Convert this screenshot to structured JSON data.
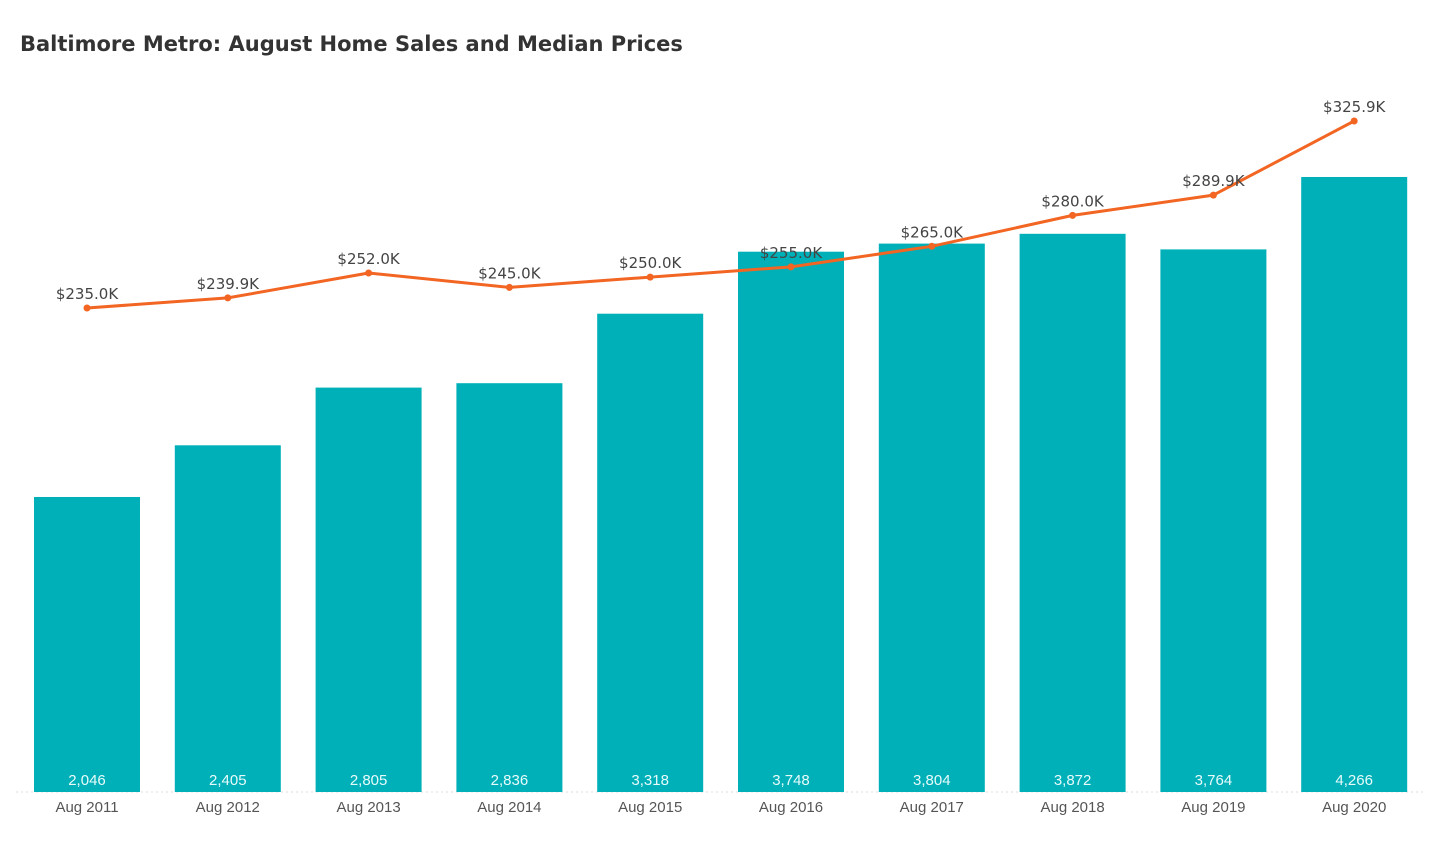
{
  "chart_data": {
    "type": "bar",
    "title": "Baltimore Metro: August Home Sales and Median Prices",
    "categories": [
      "Aug 2011",
      "Aug 2012",
      "Aug 2013",
      "Aug 2014",
      "Aug 2015",
      "Aug 2016",
      "Aug 2017",
      "Aug 2018",
      "Aug 2019",
      "Aug 2020"
    ],
    "series": [
      {
        "type": "bar",
        "values": [
          2046,
          2405,
          2805,
          2836,
          3318,
          3748,
          3804,
          3872,
          3764,
          4266
        ],
        "labels": [
          "2,046",
          "2,405",
          "2,805",
          "2,836",
          "3,318",
          "3,748",
          "3,804",
          "3,872",
          "3,764",
          "4,266"
        ],
        "color": "#00b0b9"
      },
      {
        "type": "line",
        "values": [
          235.0,
          239.9,
          252.0,
          245.0,
          250.0,
          255.0,
          265.0,
          280.0,
          289.9,
          325.9
        ],
        "labels": [
          "$235.0K",
          "$239.9K",
          "$252.0K",
          "$245.0K",
          "$250.0K",
          "$255.0K",
          "$265.0K",
          "$280.0K",
          "$289.9K",
          "$325.9K"
        ],
        "color": "#f26522"
      }
    ],
    "xlabel": "",
    "ylabel": "",
    "grid": false,
    "legend": "none"
  }
}
